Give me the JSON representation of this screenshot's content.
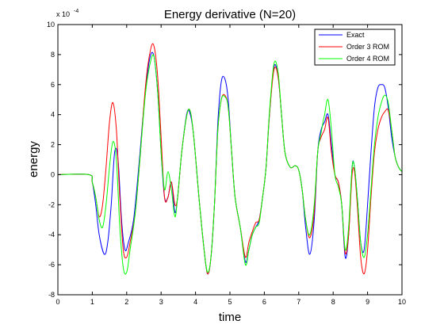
{
  "chart_data": {
    "type": "line",
    "title": "Energy derivative (N=20)",
    "xlabel": "time",
    "ylabel": "energy",
    "exponent_label": "x 10",
    "exponent_power": "-4",
    "xlim": [
      0,
      10
    ],
    "ylim": [
      -8,
      10
    ],
    "xticks": [
      "0",
      "1",
      "2",
      "3",
      "4",
      "5",
      "6",
      "7",
      "8",
      "9",
      "10"
    ],
    "yticks": [
      "-8",
      "-6",
      "-4",
      "-2",
      "0",
      "2",
      "4",
      "6",
      "8",
      "10"
    ],
    "grid": false,
    "legend_position": "top-right",
    "series": [
      {
        "name": "Exact",
        "color": "#0000ff",
        "x": [
          0,
          0.9,
          1.0,
          1.1,
          1.2,
          1.35,
          1.45,
          1.55,
          1.65,
          1.75,
          1.85,
          1.95,
          2.05,
          2.2,
          2.35,
          2.5,
          2.65,
          2.78,
          2.9,
          3.0,
          3.1,
          3.2,
          3.3,
          3.4,
          3.48,
          3.6,
          3.75,
          3.85,
          3.95,
          4.1,
          4.25,
          4.35,
          4.45,
          4.55,
          4.65,
          4.75,
          4.85,
          4.95,
          5.05,
          5.15,
          5.3,
          5.45,
          5.55,
          5.65,
          5.75,
          5.85,
          5.95,
          6.05,
          6.15,
          6.28,
          6.4,
          6.5,
          6.6,
          6.75,
          6.9,
          7.0,
          7.1,
          7.2,
          7.32,
          7.45,
          7.55,
          7.65,
          7.75,
          7.85,
          7.95,
          8.05,
          8.15,
          8.25,
          8.35,
          8.45,
          8.55,
          8.62,
          8.7,
          8.8,
          8.9,
          9.0,
          9.1,
          9.2,
          9.3,
          9.4,
          9.5,
          9.6,
          9.7,
          9.8,
          9.9,
          10.0
        ],
        "y": [
          0,
          0,
          -0.5,
          -2,
          -4,
          -5.3,
          -4.5,
          -2.0,
          1.5,
          1.0,
          -3,
          -5,
          -4.5,
          -3,
          0.5,
          4.5,
          7.5,
          8.0,
          5.5,
          1.5,
          -1.5,
          -1.5,
          -0.5,
          -2.5,
          -1.5,
          1.5,
          4.1,
          4.0,
          2.5,
          -1.5,
          -5.0,
          -6.6,
          -5.5,
          -2,
          3.5,
          6.2,
          6.4,
          5.0,
          1.5,
          -1.5,
          -3.5,
          -5.8,
          -5.0,
          -4.0,
          -3.5,
          -3.0,
          -1.5,
          0.5,
          4.0,
          7.2,
          6.5,
          4.0,
          1.5,
          0.5,
          0.6,
          0.3,
          -1.0,
          -3.5,
          -5.3,
          -3.0,
          1.5,
          3.0,
          3.5,
          4.0,
          2.0,
          0,
          -0.5,
          -2,
          -5.5,
          -4.0,
          0.5,
          0.5,
          -1.5,
          -4.5,
          -5.0,
          -2.0,
          1.5,
          4.5,
          5.8,
          6.0,
          5.8,
          4.5,
          2.5,
          1.2,
          0.5,
          0.2
        ]
      },
      {
        "name": "Order 3 ROM",
        "color": "#ff0000",
        "x": [
          0,
          0.9,
          1.0,
          1.1,
          1.2,
          1.3,
          1.4,
          1.5,
          1.6,
          1.7,
          1.8,
          1.9,
          2.0,
          2.1,
          2.25,
          2.4,
          2.55,
          2.7,
          2.8,
          2.9,
          3.0,
          3.1,
          3.2,
          3.3,
          3.4,
          3.48,
          3.6,
          3.75,
          3.85,
          3.95,
          4.1,
          4.25,
          4.35,
          4.45,
          4.55,
          4.65,
          4.75,
          4.85,
          4.95,
          5.05,
          5.15,
          5.3,
          5.45,
          5.55,
          5.65,
          5.75,
          5.85,
          5.95,
          6.05,
          6.15,
          6.28,
          6.4,
          6.5,
          6.6,
          6.75,
          6.9,
          7.0,
          7.1,
          7.2,
          7.32,
          7.45,
          7.55,
          7.65,
          7.75,
          7.85,
          7.95,
          8.05,
          8.15,
          8.25,
          8.35,
          8.45,
          8.55,
          8.62,
          8.7,
          8.8,
          8.9,
          9.0,
          9.1,
          9.2,
          9.3,
          9.4,
          9.5,
          9.6,
          9.7,
          9.8,
          9.9,
          10.0
        ],
        "y": [
          0,
          0,
          -0.5,
          -1.5,
          -2.8,
          -2.0,
          0.5,
          3.5,
          4.8,
          3.0,
          -1.5,
          -5.0,
          -5.5,
          -4.5,
          -2.5,
          1.5,
          6.0,
          8.4,
          8.5,
          6.5,
          2.5,
          -1.5,
          -1.5,
          -0.5,
          -2.0,
          -1.5,
          1.5,
          4.0,
          4.2,
          2.5,
          -1.5,
          -5.0,
          -6.6,
          -5.5,
          -2,
          3.0,
          5.0,
          5.3,
          4.5,
          1.5,
          -1.5,
          -3.5,
          -5.5,
          -4.5,
          -3.8,
          -3.2,
          -3.0,
          -1.5,
          0.5,
          4.0,
          7.0,
          6.5,
          4.0,
          1.5,
          0.5,
          0.6,
          0.3,
          -1.0,
          -3.0,
          -4.2,
          -2.5,
          1.5,
          2.5,
          3.0,
          3.8,
          1.5,
          0,
          -0.5,
          -2,
          -5.2,
          -4.0,
          0,
          0.2,
          -2.0,
          -5.5,
          -6.6,
          -5.0,
          -1.5,
          1.5,
          3.0,
          3.8,
          4.2,
          4.3,
          3.0,
          1.2,
          0.5,
          0.2
        ]
      },
      {
        "name": "Order 4 ROM",
        "color": "#00ff00",
        "x": [
          0,
          0.9,
          1.0,
          1.1,
          1.2,
          1.3,
          1.4,
          1.5,
          1.6,
          1.7,
          1.8,
          1.9,
          2.0,
          2.1,
          2.25,
          2.4,
          2.55,
          2.7,
          2.8,
          2.9,
          3.0,
          3.1,
          3.2,
          3.3,
          3.4,
          3.48,
          3.6,
          3.75,
          3.85,
          3.95,
          4.1,
          4.25,
          4.35,
          4.45,
          4.55,
          4.65,
          4.75,
          4.85,
          4.95,
          5.05,
          5.15,
          5.3,
          5.45,
          5.55,
          5.65,
          5.75,
          5.85,
          5.95,
          6.05,
          6.15,
          6.28,
          6.4,
          6.5,
          6.6,
          6.75,
          6.9,
          7.0,
          7.1,
          7.2,
          7.32,
          7.45,
          7.55,
          7.65,
          7.75,
          7.85,
          7.95,
          8.05,
          8.15,
          8.25,
          8.35,
          8.45,
          8.55,
          8.62,
          8.7,
          8.8,
          8.9,
          9.0,
          9.1,
          9.2,
          9.3,
          9.4,
          9.5,
          9.6,
          9.7,
          9.8,
          9.9,
          10.0
        ],
        "y": [
          0,
          0,
          -0.5,
          -1.5,
          -3.0,
          -3.5,
          -2.0,
          0.5,
          2.2,
          1.0,
          -3.5,
          -6.2,
          -6.5,
          -5.0,
          -2.5,
          1.5,
          5.5,
          7.6,
          7.8,
          5.5,
          1.5,
          -1.0,
          0.2,
          -1.0,
          -2.8,
          -1.5,
          1.5,
          4.0,
          4.2,
          2.5,
          -1.5,
          -5.0,
          -6.5,
          -5.5,
          -2,
          3.0,
          5.0,
          5.2,
          4.5,
          1.5,
          -1.5,
          -3.5,
          -6.0,
          -5.0,
          -4.0,
          -3.5,
          -3.2,
          -1.5,
          0.5,
          4.2,
          7.4,
          6.8,
          4.0,
          1.5,
          0.5,
          0.6,
          0.3,
          -1.0,
          -3.0,
          -4.0,
          -2.0,
          1.5,
          2.8,
          4.0,
          5.0,
          3.0,
          0,
          -0.8,
          -2,
          -5.0,
          -3.5,
          0.5,
          0.5,
          -1.5,
          -4.5,
          -5.5,
          -4.0,
          -1.0,
          2.0,
          3.8,
          4.8,
          5.3,
          4.8,
          3.0,
          1.2,
          0.5,
          0.2
        ]
      }
    ]
  }
}
